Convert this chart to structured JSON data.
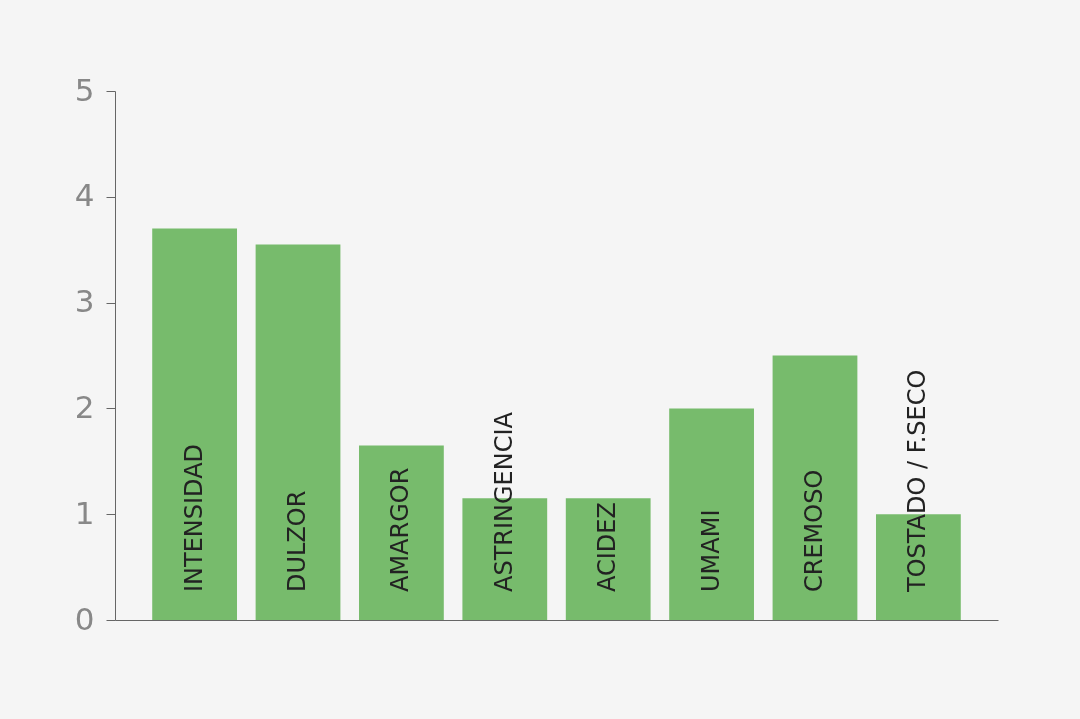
{
  "chart_data": {
    "type": "bar",
    "categories": [
      "INTENSIDAD",
      "DULZOR",
      "AMARGOR",
      "ASTRINGENCIA",
      "ACIDEZ",
      "UMAMI",
      "CREMOSO",
      "TOSTADO / F.SECO"
    ],
    "values": [
      3.7,
      3.55,
      1.65,
      1.15,
      1.15,
      2.0,
      2.5,
      1.0
    ],
    "color": "#77bb6c",
    "ylim": [
      0,
      5
    ],
    "yticks": [
      0,
      1,
      2,
      3,
      4,
      5
    ],
    "grid": false
  }
}
